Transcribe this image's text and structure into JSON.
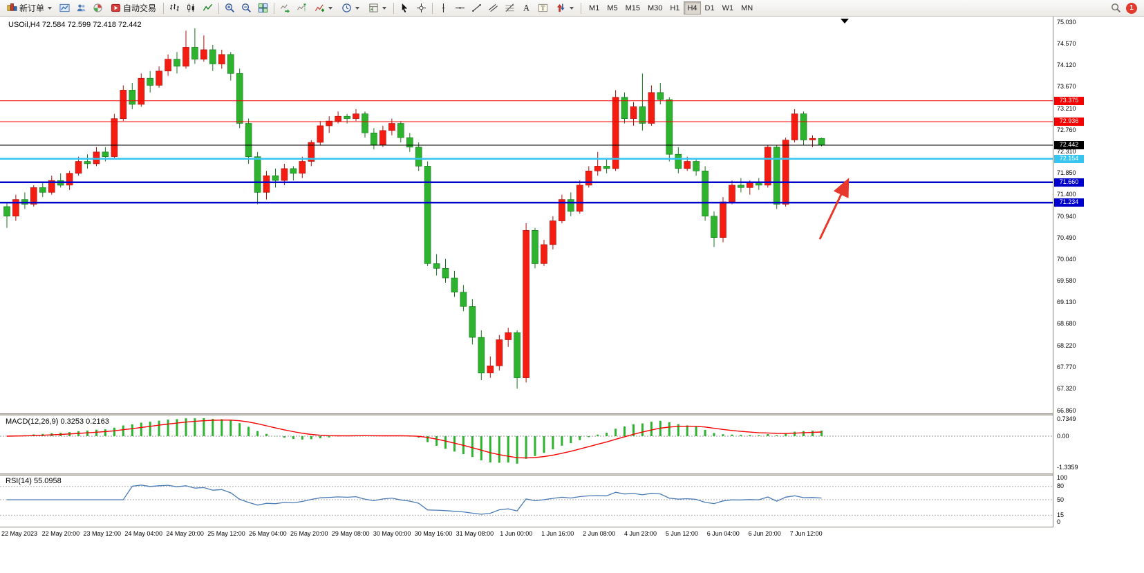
{
  "toolbar": {
    "new_order": "新订单",
    "auto_trading": "自动交易",
    "timeframes": [
      "M1",
      "M5",
      "M15",
      "M30",
      "H1",
      "H4",
      "D1",
      "W1",
      "MN"
    ],
    "active_timeframe": "H4",
    "notification_count": "1"
  },
  "chart_data": {
    "type": "candlestick",
    "symbol": "USOil",
    "period": "H4",
    "title": "USOil,H4 72.584 72.599 72.418 72.442",
    "current_ohlc": {
      "open": 72.584,
      "high": 72.599,
      "low": 72.418,
      "close": 72.442
    },
    "ylim": [
      66.802,
      75.146
    ],
    "price_axis_labels": [
      "75.030",
      "74.570",
      "74.120",
      "73.670",
      "73.210",
      "72.760",
      "72.310",
      "71.850",
      "71.400",
      "70.940",
      "70.490",
      "70.040",
      "69.580",
      "69.130",
      "68.680",
      "68.220",
      "67.770",
      "67.320",
      "66.860"
    ],
    "candle_up_color": "#f51d12",
    "candle_up_stroke": "#a80f08",
    "candle_down_color": "#2db32d",
    "candle_down_stroke": "#13761a",
    "candles": [
      [
        71.15,
        71.25,
        70.7,
        70.95
      ],
      [
        70.95,
        71.4,
        70.85,
        71.3
      ],
      [
        71.3,
        71.45,
        71.1,
        71.2
      ],
      [
        71.2,
        71.6,
        71.15,
        71.55
      ],
      [
        71.55,
        71.65,
        71.35,
        71.45
      ],
      [
        71.45,
        71.8,
        71.4,
        71.7
      ],
      [
        71.7,
        71.85,
        71.55,
        71.6
      ],
      [
        71.6,
        71.9,
        71.5,
        71.85
      ],
      [
        71.85,
        72.2,
        71.8,
        72.1
      ],
      [
        72.1,
        72.25,
        71.95,
        72.05
      ],
      [
        72.05,
        72.4,
        72.0,
        72.3
      ],
      [
        72.3,
        72.4,
        72.1,
        72.2
      ],
      [
        72.2,
        73.1,
        72.15,
        73.0
      ],
      [
        73.0,
        73.7,
        72.95,
        73.6
      ],
      [
        73.6,
        73.75,
        73.2,
        73.3
      ],
      [
        73.3,
        73.95,
        73.25,
        73.85
      ],
      [
        73.85,
        74.0,
        73.55,
        73.7
      ],
      [
        73.7,
        74.1,
        73.65,
        74.0
      ],
      [
        74.0,
        74.35,
        73.9,
        74.25
      ],
      [
        74.25,
        74.4,
        73.95,
        74.1
      ],
      [
        74.1,
        74.85,
        74.05,
        74.5
      ],
      [
        74.5,
        74.9,
        74.15,
        74.25
      ],
      [
        74.25,
        74.75,
        74.2,
        74.45
      ],
      [
        74.45,
        74.55,
        74.0,
        74.15
      ],
      [
        74.15,
        74.45,
        74.05,
        74.35
      ],
      [
        74.35,
        74.4,
        73.8,
        73.95
      ],
      [
        73.95,
        74.05,
        72.8,
        72.9
      ],
      [
        72.9,
        73.0,
        72.05,
        72.2
      ],
      [
        72.2,
        72.3,
        71.2,
        71.45
      ],
      [
        71.45,
        71.9,
        71.3,
        71.8
      ],
      [
        71.8,
        71.95,
        71.55,
        71.7
      ],
      [
        71.7,
        72.05,
        71.6,
        71.95
      ],
      [
        71.95,
        72.0,
        71.7,
        71.85
      ],
      [
        71.85,
        72.2,
        71.75,
        72.1
      ],
      [
        72.1,
        72.55,
        72.0,
        72.5
      ],
      [
        72.5,
        72.95,
        72.45,
        72.85
      ],
      [
        72.85,
        73.05,
        72.7,
        72.95
      ],
      [
        72.95,
        73.15,
        72.9,
        73.05
      ],
      [
        73.05,
        73.1,
        72.9,
        73.0
      ],
      [
        73.0,
        73.2,
        72.95,
        73.1
      ],
      [
        73.1,
        73.15,
        72.6,
        72.7
      ],
      [
        72.7,
        72.8,
        72.35,
        72.45
      ],
      [
        72.45,
        72.85,
        72.4,
        72.75
      ],
      [
        72.75,
        73.0,
        72.65,
        72.9
      ],
      [
        72.9,
        72.95,
        72.5,
        72.6
      ],
      [
        72.6,
        72.7,
        72.3,
        72.4
      ],
      [
        72.4,
        72.5,
        71.9,
        72.0
      ],
      [
        72.0,
        72.1,
        69.9,
        69.95
      ],
      [
        69.95,
        70.15,
        69.7,
        69.85
      ],
      [
        69.85,
        70.05,
        69.55,
        69.65
      ],
      [
        69.65,
        69.8,
        69.25,
        69.35
      ],
      [
        69.35,
        69.5,
        68.95,
        69.05
      ],
      [
        69.05,
        69.2,
        68.25,
        68.4
      ],
      [
        68.4,
        68.55,
        67.5,
        67.65
      ],
      [
        67.65,
        68.0,
        67.55,
        67.8
      ],
      [
        67.8,
        68.45,
        67.7,
        68.35
      ],
      [
        68.35,
        68.6,
        68.2,
        68.5
      ],
      [
        68.5,
        68.55,
        67.32,
        67.55
      ],
      [
        67.55,
        70.8,
        67.45,
        70.65
      ],
      [
        70.65,
        70.7,
        69.85,
        69.95
      ],
      [
        69.95,
        70.45,
        69.9,
        70.35
      ],
      [
        70.35,
        70.95,
        70.25,
        70.85
      ],
      [
        70.85,
        71.4,
        70.8,
        71.3
      ],
      [
        71.3,
        71.45,
        70.95,
        71.05
      ],
      [
        71.05,
        71.7,
        71.0,
        71.6
      ],
      [
        71.6,
        72.0,
        71.55,
        71.9
      ],
      [
        71.9,
        72.3,
        71.8,
        72.0
      ],
      [
        72.0,
        72.15,
        71.85,
        71.95
      ],
      [
        71.95,
        73.6,
        71.9,
        73.45
      ],
      [
        73.45,
        73.55,
        72.9,
        73.0
      ],
      [
        73.0,
        73.35,
        72.85,
        73.25
      ],
      [
        73.25,
        73.95,
        72.75,
        72.9
      ],
      [
        72.9,
        73.7,
        72.85,
        73.55
      ],
      [
        73.55,
        73.75,
        73.3,
        73.4
      ],
      [
        73.4,
        73.45,
        72.1,
        72.25
      ],
      [
        72.25,
        72.4,
        71.85,
        71.95
      ],
      [
        71.95,
        72.2,
        71.9,
        72.1
      ],
      [
        72.1,
        72.15,
        71.8,
        71.9
      ],
      [
        71.9,
        72.0,
        70.85,
        70.95
      ],
      [
        70.95,
        71.05,
        70.3,
        70.5
      ],
      [
        70.5,
        71.35,
        70.4,
        71.25
      ],
      [
        71.25,
        71.7,
        71.2,
        71.6
      ],
      [
        71.6,
        71.75,
        71.45,
        71.55
      ],
      [
        71.55,
        71.7,
        71.4,
        71.65
      ],
      [
        71.65,
        71.75,
        71.5,
        71.6
      ],
      [
        71.6,
        72.45,
        71.55,
        72.4
      ],
      [
        72.4,
        72.45,
        71.1,
        71.2
      ],
      [
        71.2,
        72.6,
        71.15,
        72.55
      ],
      [
        72.55,
        73.2,
        72.5,
        73.1
      ],
      [
        73.1,
        73.15,
        72.45,
        72.55
      ],
      [
        72.55,
        72.65,
        72.4,
        72.584
      ],
      [
        72.584,
        72.599,
        72.418,
        72.442
      ]
    ],
    "price_lines": [
      {
        "price": 73.375,
        "label": "73.375",
        "color": "#f60000",
        "width": 1
      },
      {
        "price": 72.936,
        "label": "72.936",
        "color": "#f60000",
        "width": 1
      },
      {
        "price": 72.442,
        "label": "72.442",
        "color": "#000000",
        "width": 1
      },
      {
        "price": 72.154,
        "label": "72.154",
        "color": "#35c5f0",
        "width": 2.5
      },
      {
        "price": 71.66,
        "label": "71.660",
        "color": "#0000cd",
        "width": 2.5
      },
      {
        "price": 71.234,
        "label": "71.234",
        "color": "#0000cd",
        "width": 2.5
      }
    ],
    "annotation": {
      "shape": "arrow",
      "direction": "up-right",
      "color": "#e8382b"
    },
    "macd": {
      "label": "MACD(12,26,9) 0.3253 0.2163",
      "params": [
        12,
        26,
        9
      ],
      "macd_value": 0.3253,
      "signal_value": 0.2163,
      "axis_labels": [
        "0.7349",
        "0.00",
        "-1.3359"
      ],
      "histogram_color": "#2db32d",
      "signal_color": "#f60000"
    },
    "rsi": {
      "label": "RSI(14) 55.0958",
      "period": 14,
      "value": 55.0958,
      "axis_labels": [
        "100",
        "80",
        "50",
        "15",
        "0"
      ],
      "levels": [
        80,
        50,
        15
      ],
      "line_color": "#4a7ab5"
    },
    "date_labels": [
      "22 May 2023",
      "22 May 20:00",
      "23 May 12:00",
      "24 May 04:00",
      "24 May 20:00",
      "25 May 12:00",
      "26 May 04:00",
      "26 May 20:00",
      "29 May 08:00",
      "30 May 00:00",
      "30 May 16:00",
      "31 May 08:00",
      "1 Jun 00:00",
      "1 Jun 16:00",
      "2 Jun 08:00",
      "4 Jun 23:00",
      "5 Jun 12:00",
      "6 Jun 04:00",
      "6 Jun 20:00",
      "7 Jun 12:00"
    ]
  }
}
